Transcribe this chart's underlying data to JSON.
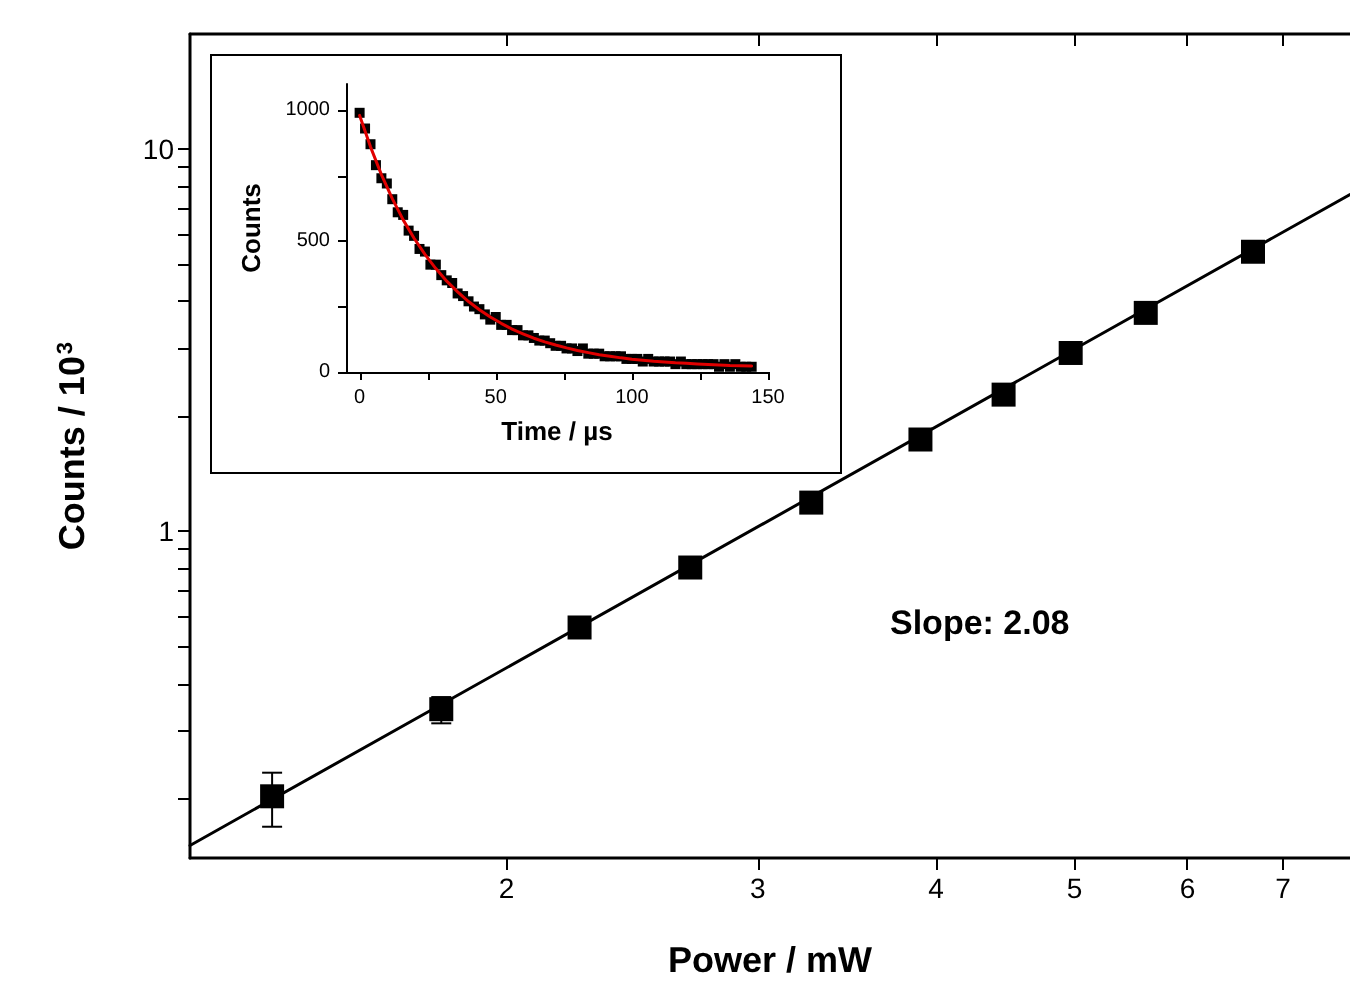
{
  "chart_data": [
    {
      "type": "scatter",
      "xlabel": "Power / mW",
      "ylabel": "Counts / 10$^{3}$",
      "log": "xy",
      "xlim": [
        1.2,
        7.8
      ],
      "xticks": [
        2,
        3,
        4,
        5,
        6,
        7
      ],
      "ylim": [
        0.14,
        20
      ],
      "yticks": [
        {
          "value": 0.2,
          "label": null
        },
        {
          "value": 0.3,
          "label": null
        },
        {
          "value": 0.4,
          "label": null
        },
        {
          "value": 0.5,
          "label": null
        },
        {
          "value": 0.6,
          "label": null
        },
        {
          "value": 0.7,
          "label": null
        },
        {
          "value": 0.8,
          "label": null
        },
        {
          "value": 0.9,
          "label": null
        },
        1,
        {
          "value": 2,
          "label": null
        },
        {
          "value": 3,
          "label": null
        },
        {
          "value": 4,
          "label": null
        },
        {
          "value": 5,
          "label": null
        },
        {
          "value": 6,
          "label": null
        },
        {
          "value": 7,
          "label": null
        },
        {
          "value": 8,
          "label": null
        },
        {
          "value": 9,
          "label": null
        },
        10
      ],
      "annotations": [
        "Slope: 2.08"
      ],
      "series": [
        {
          "type": "scatter",
          "color": "#000000",
          "marker": "square",
          "x": [
            1.37,
            1.8,
            2.25,
            2.69,
            3.27,
            3.9,
            4.46,
            4.97,
            5.61,
            6.67
          ],
          "values": [
            0.203,
            0.343,
            0.561,
            0.805,
            1.19,
            1.74,
            2.28,
            2.93,
            3.73,
            5.39
          ],
          "errors": [
            [
              0.169,
              0.234
            ],
            [
              0.315,
              0.369
            ],
            null,
            null,
            null,
            null,
            null,
            null,
            null,
            null
          ]
        },
        {
          "type": "line",
          "color": "#000000",
          "marker": "none",
          "x": [
            1.2,
            7.8
          ],
          "values": [
            0.151,
            7.61
          ]
        }
      ]
    },
    {
      "type": "scatter",
      "xlabel": "Time / µs",
      "ylabel": "Counts",
      "xlim": [
        -5,
        150
      ],
      "xticks": [
        0,
        {
          "value": 25,
          "label": null
        },
        50,
        {
          "value": 75,
          "label": null
        },
        100,
        {
          "value": 125,
          "label": null
        },
        150
      ],
      "ylim": [
        0,
        1100
      ],
      "yticks": [
        0,
        {
          "value": 250,
          "label": null
        },
        500,
        {
          "value": 750,
          "label": null
        },
        1000
      ],
      "series": [
        {
          "type": "scatter",
          "color": "#000000",
          "marker": "square",
          "x": [
            0,
            2,
            4,
            6,
            8,
            10,
            12,
            14,
            16,
            18,
            20,
            22,
            24,
            26,
            28,
            30,
            32,
            34,
            36,
            38,
            40,
            42,
            44,
            46,
            48,
            50,
            52,
            54,
            56,
            58,
            60,
            62,
            64,
            66,
            68,
            70,
            72,
            74,
            76,
            78,
            80,
            82,
            84,
            86,
            88,
            90,
            92,
            94,
            96,
            98,
            100,
            102,
            104,
            106,
            108,
            110,
            112,
            114,
            116,
            118,
            120,
            122,
            124,
            126,
            128,
            130,
            132,
            134,
            136,
            138,
            140,
            142,
            144
          ],
          "values": [
            990,
            930,
            870,
            790,
            740,
            720,
            660,
            610,
            600,
            540,
            520,
            470,
            460,
            410,
            410,
            370,
            350,
            340,
            300,
            290,
            270,
            250,
            240,
            220,
            200,
            210,
            180,
            180,
            160,
            160,
            140,
            140,
            130,
            120,
            120,
            110,
            100,
            100,
            90,
            90,
            80,
            90,
            70,
            70,
            70,
            60,
            60,
            60,
            60,
            50,
            50,
            50,
            40,
            50,
            40,
            40,
            40,
            40,
            30,
            40,
            30,
            30,
            30,
            30,
            30,
            30,
            20,
            30,
            20,
            30,
            20,
            20,
            20
          ]
        },
        {
          "type": "line",
          "color": "#e00000",
          "marker": "none",
          "x": [
            0,
            4,
            8,
            12,
            16,
            20,
            24,
            28,
            32,
            36,
            40,
            44,
            48,
            52,
            56,
            60,
            64,
            68,
            72,
            76,
            80,
            84,
            88,
            92,
            96,
            100,
            104,
            108,
            112,
            116,
            120,
            124,
            128,
            132,
            136,
            140,
            144
          ],
          "values": [
            980,
            860,
            754,
            662,
            581,
            511,
            449,
            395,
            347,
            306,
            269,
            238,
            210,
            186,
            164,
            146,
            129,
            115,
            103,
            92,
            82,
            74,
            66,
            60,
            54,
            49,
            45,
            41,
            38,
            35,
            33,
            31,
            29,
            27,
            25,
            24,
            23
          ]
        }
      ]
    }
  ]
}
